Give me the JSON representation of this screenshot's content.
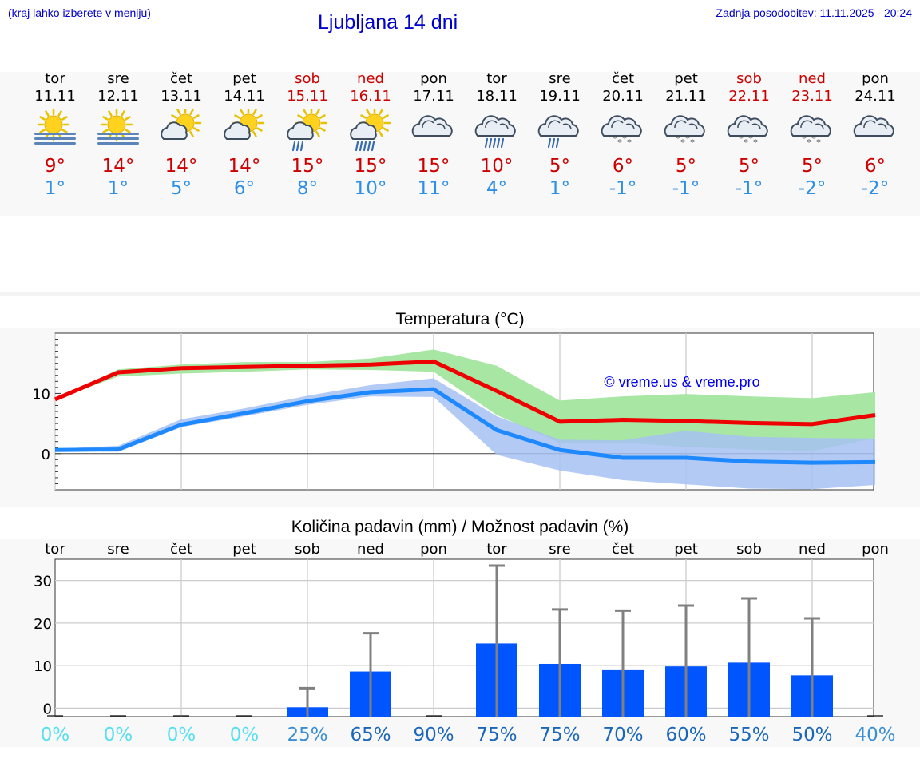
{
  "header": {
    "menu_hint": "(kraj lahko izberete v meniju)",
    "title": "Ljubljana 14 dni",
    "last_update": "Zadnja posodobitev: 11.11.2025 - 20:24"
  },
  "days": [
    {
      "dow": "tor",
      "date": "11.11",
      "weekend": false,
      "icon": "sun-fog-icon",
      "tmax": "9°",
      "tmin": "1°"
    },
    {
      "dow": "sre",
      "date": "12.11",
      "weekend": false,
      "icon": "sun-fog-icon",
      "tmax": "14°",
      "tmin": "1°"
    },
    {
      "dow": "čet",
      "date": "13.11",
      "weekend": false,
      "icon": "sun-cloud-icon",
      "tmax": "14°",
      "tmin": "5°"
    },
    {
      "dow": "pet",
      "date": "14.11",
      "weekend": false,
      "icon": "sun-cloud-icon",
      "tmax": "14°",
      "tmin": "6°"
    },
    {
      "dow": "sob",
      "date": "15.11",
      "weekend": true,
      "icon": "sun-cloud-rain-icon",
      "tmax": "15°",
      "tmin": "8°"
    },
    {
      "dow": "ned",
      "date": "16.11",
      "weekend": true,
      "icon": "sun-cloud-heavy-rain-icon",
      "tmax": "15°",
      "tmin": "10°"
    },
    {
      "dow": "pon",
      "date": "17.11",
      "weekend": false,
      "icon": "cloud-icon",
      "tmax": "15°",
      "tmin": "11°"
    },
    {
      "dow": "tor",
      "date": "18.11",
      "weekend": false,
      "icon": "cloud-heavy-rain-icon",
      "tmax": "10°",
      "tmin": "4°"
    },
    {
      "dow": "sre",
      "date": "19.11",
      "weekend": false,
      "icon": "cloud-rain-icon",
      "tmax": "5°",
      "tmin": "1°"
    },
    {
      "dow": "čet",
      "date": "20.11",
      "weekend": false,
      "icon": "cloud-snow-icon",
      "tmax": "6°",
      "tmin": "-1°"
    },
    {
      "dow": "pet",
      "date": "21.11",
      "weekend": false,
      "icon": "cloud-snow-icon",
      "tmax": "5°",
      "tmin": "-1°"
    },
    {
      "dow": "sob",
      "date": "22.11",
      "weekend": true,
      "icon": "cloud-snow-icon",
      "tmax": "5°",
      "tmin": "-1°"
    },
    {
      "dow": "ned",
      "date": "23.11",
      "weekend": true,
      "icon": "cloud-snow-icon",
      "tmax": "5°",
      "tmin": "-2°"
    },
    {
      "dow": "pon",
      "date": "24.11",
      "weekend": false,
      "icon": "cloud-icon",
      "tmax": "6°",
      "tmin": "-2°"
    }
  ],
  "colors": {
    "max_line": "#ee0000",
    "min_line": "#1e88ff",
    "max_band": "#a8e6a4",
    "min_band": "#a6c2f2",
    "overlap_band": "#7bc3a6",
    "precip_bar": "#0055ff",
    "whisker": "#808080",
    "weekend_text": "#cc0000",
    "title_blue": "#0000cc"
  },
  "chart_data": [
    {
      "type": "line",
      "title": "Temperatura (°C)",
      "watermark": "© vreme.us & vreme.pro",
      "ylim": [
        -6,
        20
      ],
      "yticks": [
        0,
        10
      ],
      "x": [
        0,
        1,
        2,
        3,
        4,
        5,
        6,
        7,
        8,
        9,
        10,
        11,
        12,
        13
      ],
      "series": [
        {
          "name": "max",
          "values": [
            9,
            13.5,
            14.2,
            14.4,
            14.6,
            14.8,
            15.3,
            10.4,
            5.3,
            5.6,
            5.4,
            5.1,
            4.9,
            6.4
          ]
        },
        {
          "name": "min",
          "values": [
            0.6,
            0.7,
            4.8,
            6.7,
            8.7,
            10.2,
            10.7,
            3.9,
            0.6,
            -0.7,
            -0.7,
            -1.3,
            -1.5,
            -1.4
          ]
        },
        {
          "name": "max_band_upper",
          "values": [
            9,
            14,
            14.8,
            15.2,
            15.2,
            15.8,
            17.3,
            14.6,
            8.8,
            9.5,
            9.9,
            9.5,
            9.2,
            10.2
          ]
        },
        {
          "name": "max_band_lower",
          "values": [
            9,
            12.8,
            13.3,
            13.6,
            14,
            13.9,
            13.6,
            6.4,
            1.8,
            1.8,
            1.1,
            0.7,
            0.4,
            2.6
          ]
        },
        {
          "name": "min_band_upper",
          "values": [
            0.8,
            1.3,
            5.7,
            7.5,
            9.6,
            11.4,
            12.5,
            6.2,
            2.3,
            2.2,
            3.8,
            2.8,
            2.6,
            2.5
          ]
        },
        {
          "name": "min_band_lower",
          "values": [
            0.6,
            0.3,
            4.4,
            6.2,
            8.1,
            9.5,
            9.4,
            -0.2,
            -2.8,
            -4.4,
            -5.1,
            -5.8,
            -5.9,
            -5.2
          ]
        }
      ]
    },
    {
      "type": "bar",
      "title": "Količina padavin (mm) / Možnost padavin (%)",
      "categories": [
        "tor",
        "sre",
        "čet",
        "pet",
        "sob",
        "ned",
        "pon",
        "tor",
        "sre",
        "čet",
        "pet",
        "sob",
        "ned",
        "pon"
      ],
      "ylim": [
        -2,
        35
      ],
      "yticks": [
        0,
        10,
        20,
        30
      ],
      "values": [
        0,
        0,
        0,
        0,
        0.2,
        8.6,
        0,
        15.2,
        10.4,
        9.1,
        9.8,
        10.7,
        7.7,
        0
      ],
      "max_values": [
        0,
        0,
        0,
        0,
        4.7,
        17.6,
        0,
        33.5,
        23.2,
        22.9,
        24.1,
        25.8,
        21.1,
        0
      ],
      "probability": [
        "0%",
        "0%",
        "0%",
        "0%",
        "25%",
        "65%",
        "90%",
        "75%",
        "75%",
        "70%",
        "60%",
        "55%",
        "50%",
        "40%"
      ],
      "probability_colors": [
        "#55dff0",
        "#55dff0",
        "#55dff0",
        "#55dff0",
        "#3a8fd4",
        "#1a66bb",
        "#1a66bb",
        "#1a66bb",
        "#1a66bb",
        "#1a66bb",
        "#1a66bb",
        "#1a66bb",
        "#1a66bb",
        "#3a8fd4"
      ]
    }
  ]
}
